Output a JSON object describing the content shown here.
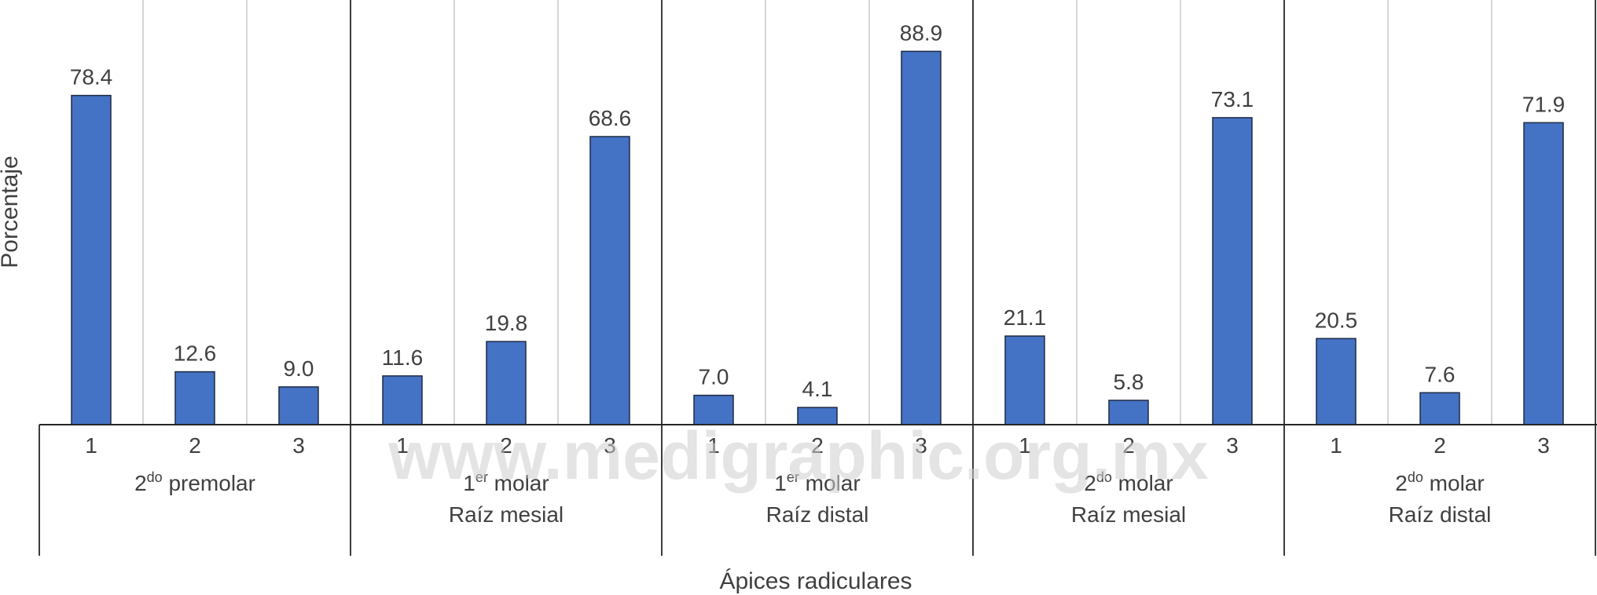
{
  "chart_data": {
    "type": "bar",
    "ylabel": "Porcentaje",
    "xlabel": "Ápices radiculares",
    "ylim": [
      0,
      100
    ],
    "grid": "vertical separators between bars",
    "bar_color": "#4472C4",
    "groups": [
      {
        "label_main": "2",
        "label_sup": "do",
        "label_rest": " premolar",
        "label_line2": "",
        "categories": [
          "1",
          "2",
          "3"
        ],
        "values": [
          78.4,
          12.6,
          9.0
        ],
        "value_labels": [
          "78.4",
          "12.6",
          "9.0"
        ]
      },
      {
        "label_main": "1",
        "label_sup": "er",
        "label_rest": " molar",
        "label_line2": "Raíz mesial",
        "categories": [
          "1",
          "2",
          "3"
        ],
        "values": [
          11.6,
          19.8,
          68.6
        ],
        "value_labels": [
          "11.6",
          "19.8",
          "68.6"
        ]
      },
      {
        "label_main": "1",
        "label_sup": "er",
        "label_rest": " molar",
        "label_line2": "Raíz distal",
        "categories": [
          "1",
          "2",
          "3"
        ],
        "values": [
          7.0,
          4.1,
          88.9
        ],
        "value_labels": [
          "7.0",
          "4.1",
          "88.9"
        ]
      },
      {
        "label_main": "2",
        "label_sup": "do",
        "label_rest": " molar",
        "label_line2": "Raíz mesial",
        "categories": [
          "1",
          "2",
          "3"
        ],
        "values": [
          21.1,
          5.8,
          73.1
        ],
        "value_labels": [
          "21.1",
          "5.8",
          "73.1"
        ]
      },
      {
        "label_main": "2",
        "label_sup": "do",
        "label_rest": " molar",
        "label_line2": "Raíz distal",
        "categories": [
          "1",
          "2",
          "3"
        ],
        "values": [
          20.5,
          7.6,
          71.9
        ],
        "value_labels": [
          "20.5",
          "7.6",
          "71.9"
        ]
      }
    ]
  },
  "watermark": "www.medigraphic.org.mx"
}
